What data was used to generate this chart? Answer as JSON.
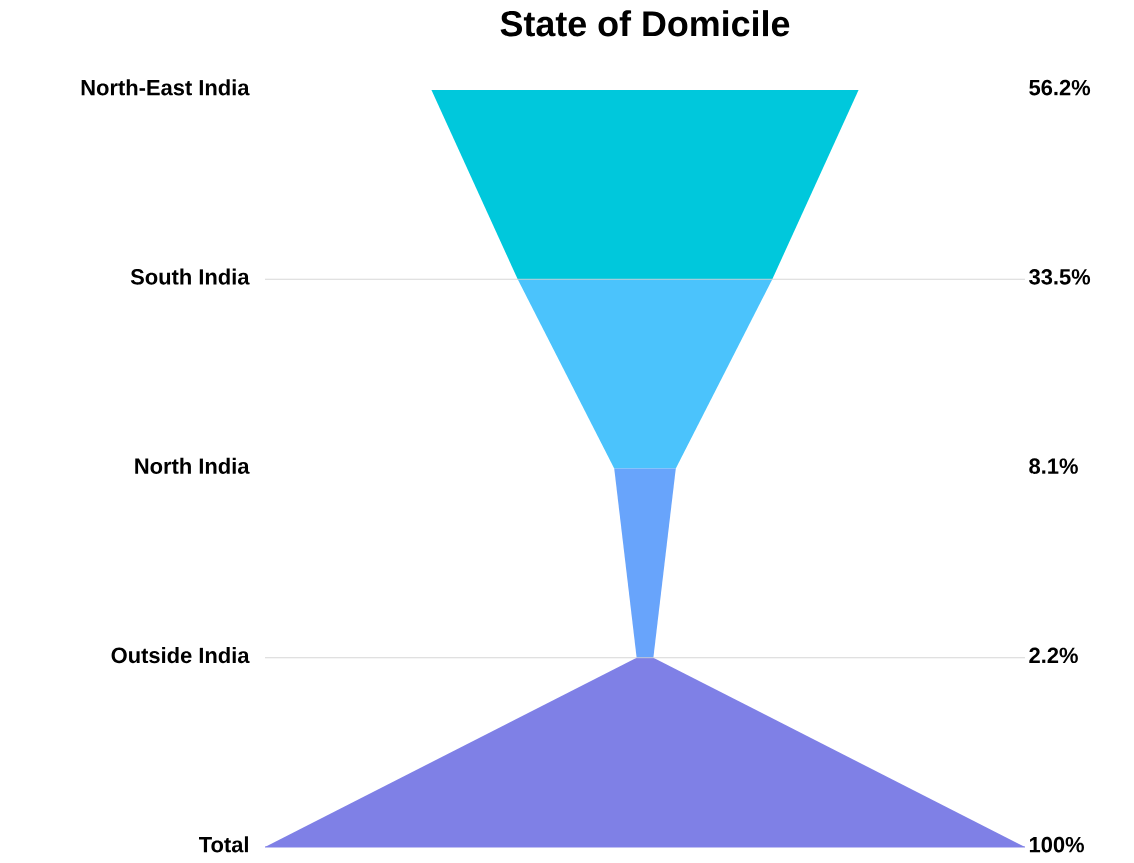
{
  "chart_data": {
    "type": "other",
    "title": "State of Domicile",
    "categories": [
      "North-East India",
      "South India",
      "North India",
      "Outside India",
      "Total"
    ],
    "values": [
      56.2,
      33.5,
      8.1,
      2.2,
      100
    ],
    "value_labels": [
      "56.2%",
      "33.5%",
      "8.1%",
      "2.2%",
      "100%"
    ],
    "colors": [
      "#00c8dc",
      "#4bc3fc",
      "#68a4fb",
      "#7f80e6",
      "#7f80e6"
    ]
  }
}
